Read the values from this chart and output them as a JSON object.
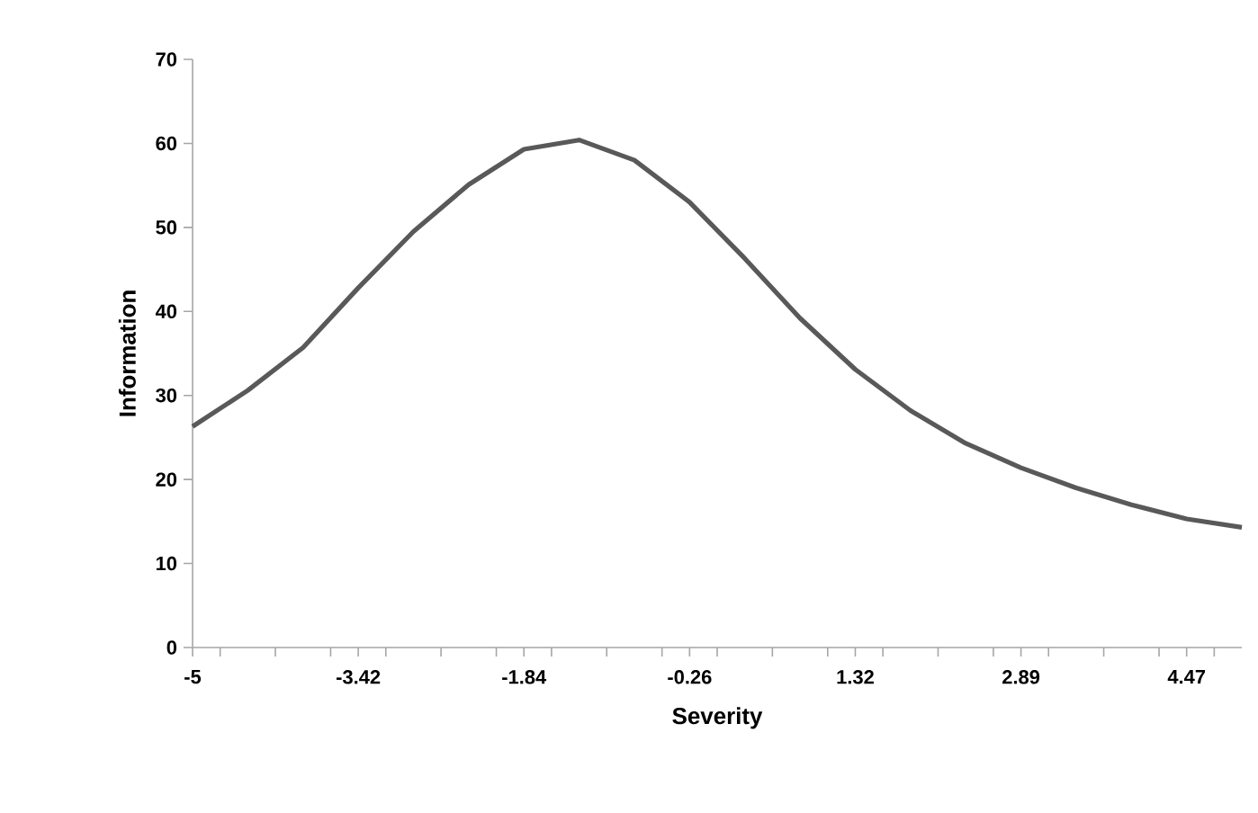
{
  "chart_data": {
    "type": "line",
    "xlabel": "Severity",
    "ylabel": "Information",
    "x": [
      -5,
      -4.474,
      -3.947,
      -3.421,
      -2.895,
      -2.368,
      -1.842,
      -1.316,
      -0.789,
      -0.263,
      0.263,
      0.789,
      1.316,
      1.842,
      2.368,
      2.895,
      3.421,
      3.947,
      4.474,
      5
    ],
    "series": [
      {
        "color": "#595959",
        "values": [
          26.3,
          30.6,
          35.7,
          42.8,
          49.5,
          55.1,
          59.3,
          60.4,
          58.0,
          53.0,
          46.3,
          39.2,
          33.1,
          28.2,
          24.3,
          21.4,
          19.0,
          17.0,
          15.3,
          14.3
        ]
      }
    ],
    "xlim": [
      -5,
      5
    ],
    "xticks": [
      {
        "value": -5,
        "label": "-5"
      },
      {
        "value": -4.737,
        "label": null
      },
      {
        "value": -4.211,
        "label": null
      },
      {
        "value": -3.684,
        "label": null
      },
      {
        "value": -3.421,
        "label": "-3.42"
      },
      {
        "value": -3.158,
        "label": null
      },
      {
        "value": -2.632,
        "label": null
      },
      {
        "value": -2.105,
        "label": null
      },
      {
        "value": -1.842,
        "label": "-1.84"
      },
      {
        "value": -1.579,
        "label": null
      },
      {
        "value": -1.053,
        "label": null
      },
      {
        "value": -0.526,
        "label": null
      },
      {
        "value": -0.263,
        "label": "-0.26"
      },
      {
        "value": 0,
        "label": null
      },
      {
        "value": 0.526,
        "label": null
      },
      {
        "value": 1.053,
        "label": null
      },
      {
        "value": 1.316,
        "label": "1.32"
      },
      {
        "value": 1.579,
        "label": null
      },
      {
        "value": 2.105,
        "label": null
      },
      {
        "value": 2.632,
        "label": null
      },
      {
        "value": 2.895,
        "label": "2.89"
      },
      {
        "value": 3.158,
        "label": null
      },
      {
        "value": 3.684,
        "label": null
      },
      {
        "value": 4.211,
        "label": null
      },
      {
        "value": 4.474,
        "label": "4.47"
      },
      {
        "value": 4.737,
        "label": null
      }
    ],
    "ylim": [
      0,
      70
    ],
    "yticks": [
      0,
      10,
      20,
      30,
      40,
      50,
      60,
      70
    ],
    "marker": "none",
    "line_style": "solid"
  }
}
